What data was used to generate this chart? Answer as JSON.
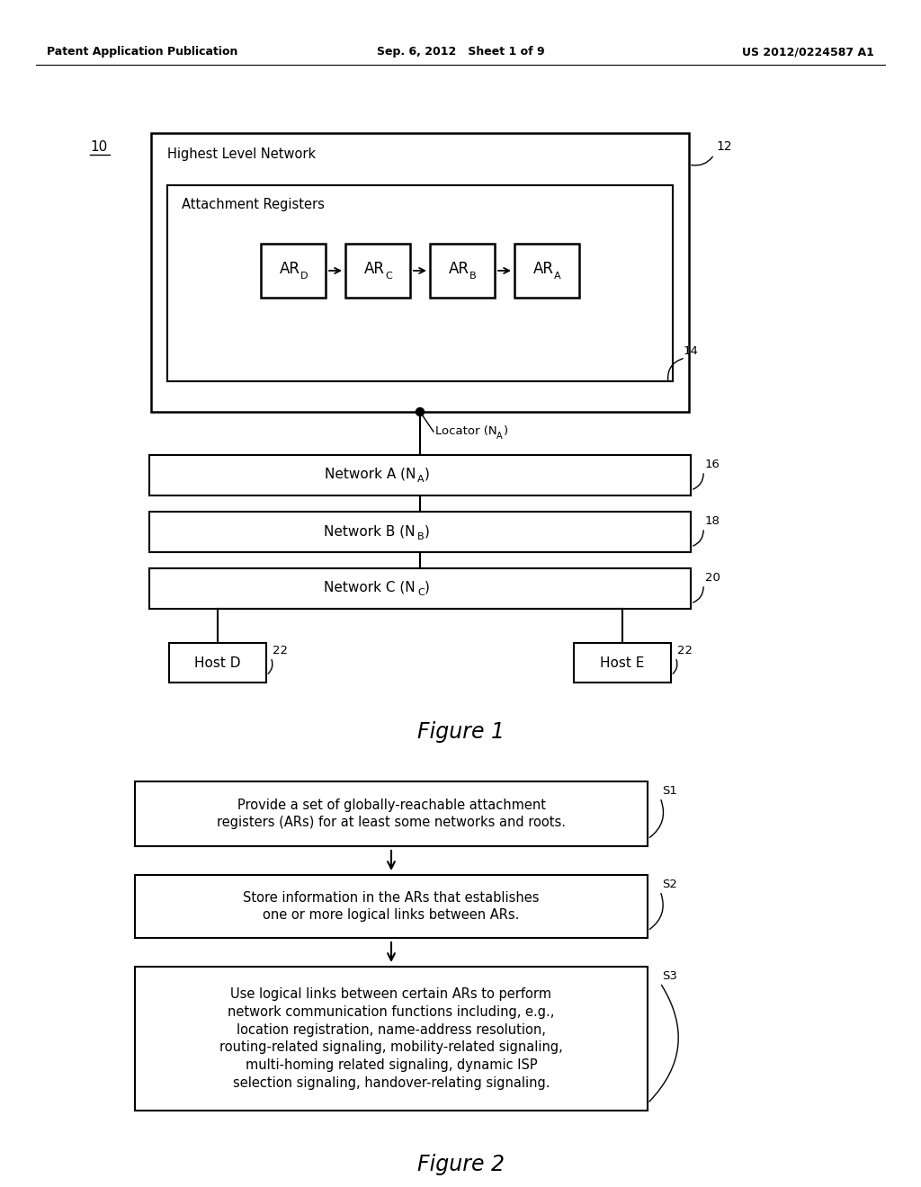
{
  "bg_color": "#ffffff",
  "header_left": "Patent Application Publication",
  "header_center": "Sep. 6, 2012   Sheet 1 of 9",
  "header_right": "US 2012/0224587 A1",
  "fig1_label": "10",
  "fig1_caption": "Figure 1",
  "fig2_caption": "Figure 2",
  "outer_box_label": "12",
  "inner_box1_label": "14",
  "inner_box1_title": "Highest Level Network",
  "ar_box_title": "Attachment Registers",
  "ar_subscripts": [
    "D",
    "C",
    "B",
    "A"
  ],
  "ref_labels_net": [
    "16",
    "18",
    "20"
  ],
  "locator_text_main": "Locator (N",
  "locator_sub": "A",
  "locator_close": ")",
  "network_mains": [
    "Network A (N",
    "Network B (N",
    "Network C (N"
  ],
  "network_subs": [
    "A",
    "B",
    "C"
  ],
  "host_labels": [
    "Host D",
    "Host E"
  ],
  "host_ref": "22",
  "flow_boxes": [
    {
      "label": "S1",
      "text": "Provide a set of globally-reachable attachment\nregisters (ARs) for at least some networks and roots."
    },
    {
      "label": "S2",
      "text": "Store information in the ARs that establishes\none or more logical links between ARs."
    },
    {
      "label": "S3",
      "text": "Use logical links between certain ARs to perform\nnetwork communication functions including, e.g.,\nlocation registration, name-address resolution,\nrouting-related signaling, mobility-related signaling,\nmulti-homing related signaling, dynamic ISP\nselection signaling, handover-relating signaling."
    }
  ]
}
